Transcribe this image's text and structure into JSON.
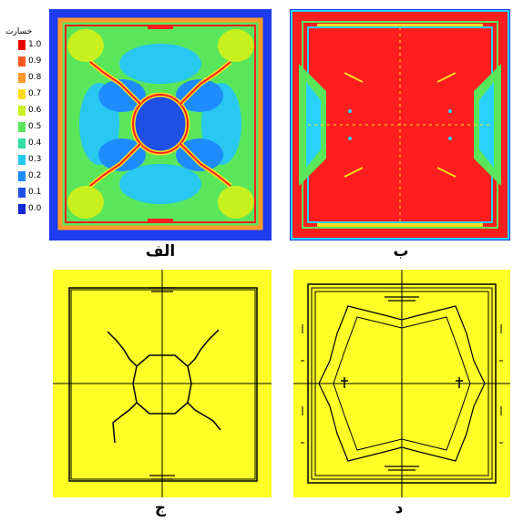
{
  "legend": {
    "title": "خسارت",
    "entries": [
      {
        "label": "1.0",
        "color": "#e80000"
      },
      {
        "label": "0.9",
        "color": "#ff5a1e"
      },
      {
        "label": "0.8",
        "color": "#ff9a2a"
      },
      {
        "label": "0.7",
        "color": "#ffdc1e"
      },
      {
        "label": "0.6",
        "color": "#c8f01e"
      },
      {
        "label": "0.5",
        "color": "#5ae65a"
      },
      {
        "label": "0.4",
        "color": "#32dca0"
      },
      {
        "label": "0.3",
        "color": "#28c8f0"
      },
      {
        "label": "0.2",
        "color": "#1e8cff"
      },
      {
        "label": "0.1",
        "color": "#1e50e6"
      },
      {
        "label": "0.0",
        "color": "#1428d2"
      }
    ]
  },
  "panels": [
    {
      "id": "a",
      "caption": "الف",
      "kind": "damage-contour-center"
    },
    {
      "id": "b",
      "caption": "ب",
      "kind": "damage-contour-full"
    },
    {
      "id": "c",
      "caption": "ج",
      "kind": "crack-pattern-center"
    },
    {
      "id": "d",
      "caption": "د",
      "kind": "crack-pattern-full"
    }
  ],
  "colors": {
    "background_blue": "#1e3cf0",
    "yellow_bg": "#ffff28",
    "damage_red": "#ff1e1e",
    "cyan": "#28d2ff",
    "green": "#5ae65a",
    "crack_line": "#000000"
  }
}
